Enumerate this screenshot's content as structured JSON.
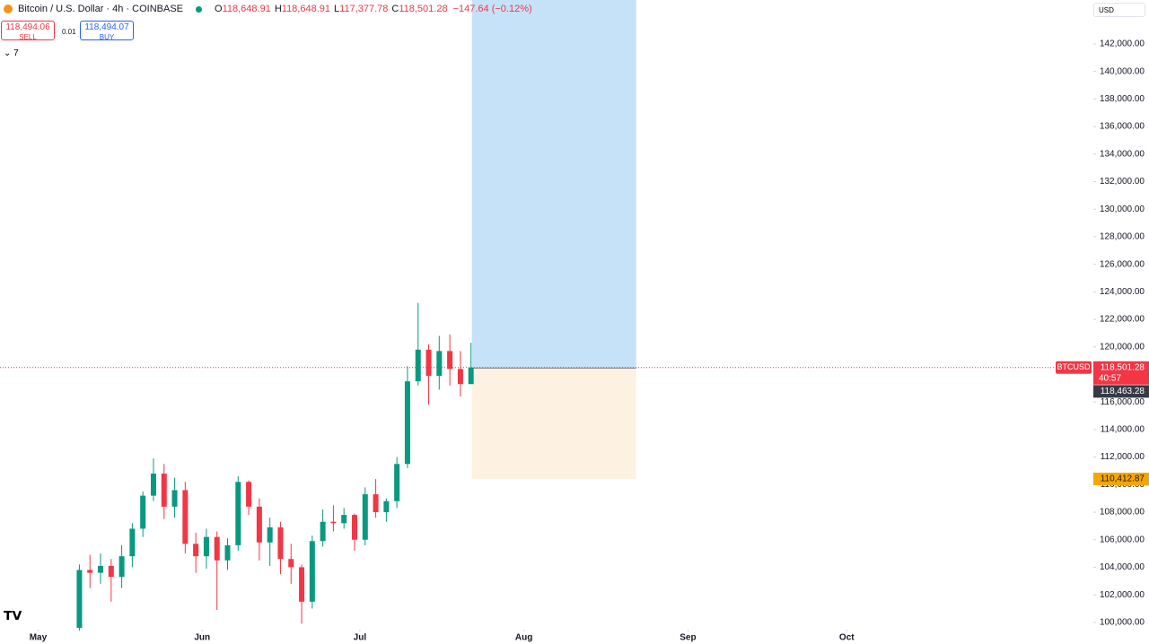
{
  "header": {
    "symbol": "Bitcoin / U.S. Dollar · 4h · COINBASE",
    "ohlc": [
      {
        "key": "O",
        "value": "118,648.91"
      },
      {
        "key": "H",
        "value": "118,648.91"
      },
      {
        "key": "L",
        "value": "117,377.78"
      },
      {
        "key": "C",
        "value": "118,501.28"
      }
    ],
    "change": "−147.64 (−0.12%)",
    "indicators": "7"
  },
  "trade": {
    "sell": "118,494.06",
    "sell_label": "SELL",
    "spread": "0.01",
    "buy": "118,494.07",
    "buy_label": "BUY"
  },
  "currency": "USD",
  "chart_data": {
    "type": "candlestick",
    "open": [
      99600,
      103800,
      103600,
      104100,
      103300,
      104800,
      106800,
      109200,
      110800,
      108400,
      109600,
      105700,
      104800,
      106200,
      104500,
      105600,
      110200,
      108400,
      105800,
      106900,
      104600,
      104000,
      101500,
      105900,
      107300,
      107200,
      107800,
      106000,
      109300,
      108000,
      108800,
      111500,
      117500,
      119800,
      117900,
      119700,
      118400,
      117300
    ],
    "high": [
      104200,
      104900,
      105000,
      104600,
      105600,
      107200,
      109500,
      111900,
      111500,
      110500,
      110200,
      106500,
      106800,
      106600,
      106100,
      110600,
      110300,
      109000,
      107600,
      107300,
      105700,
      104200,
      106300,
      108200,
      108500,
      108300,
      107900,
      109800,
      110400,
      109000,
      112000,
      118600,
      123200,
      120200,
      120800,
      120900,
      119700,
      120300
    ],
    "low": [
      99400,
      102500,
      102800,
      101500,
      102500,
      104000,
      106200,
      108800,
      107500,
      107600,
      105000,
      103600,
      103900,
      100900,
      103800,
      105200,
      107800,
      104500,
      104100,
      103500,
      102800,
      99900,
      101000,
      105500,
      106600,
      106800,
      105200,
      105600,
      107600,
      107300,
      108300,
      111200,
      117200,
      115800,
      116900,
      117200,
      116400,
      117300
    ],
    "close": [
      103800,
      103600,
      104100,
      103300,
      104800,
      106800,
      109200,
      110800,
      108400,
      109600,
      105700,
      104800,
      106200,
      104500,
      105600,
      110200,
      108400,
      105800,
      106900,
      104600,
      104000,
      101500,
      105900,
      107300,
      107200,
      107800,
      106000,
      109300,
      108000,
      108800,
      111500,
      117500,
      119800,
      117900,
      119700,
      118400,
      117300,
      118501.28
    ],
    "up_color": "#089981",
    "down_color": "#f23645",
    "xlim": [
      -7.5,
      95.8
    ],
    "xticks": [
      {
        "value": -3.9,
        "label": "May"
      },
      {
        "value": 11.6,
        "label": "Jun"
      },
      {
        "value": 26.5,
        "label": "Jul"
      },
      {
        "value": 42,
        "label": "Aug"
      },
      {
        "value": 57.5,
        "label": "Sep"
      },
      {
        "value": 72.5,
        "label": "Oct"
      }
    ],
    "ylim": [
      99600,
      145190
    ],
    "yticks": [
      {
        "value": 100000,
        "label": "100,000.00"
      },
      {
        "value": 102000,
        "label": "102,000.00"
      },
      {
        "value": 104000,
        "label": "104,000.00"
      },
      {
        "value": 106000,
        "label": "106,000.00"
      },
      {
        "value": 108000,
        "label": "108,000.00"
      },
      {
        "value": 110000,
        "label": "110,000.00"
      },
      {
        "value": 112000,
        "label": "112,000.00"
      },
      {
        "value": 114000,
        "label": "114,000.00"
      },
      {
        "value": 116000,
        "label": "116,000.00"
      },
      {
        "value": 118000,
        "label": "118,000.00"
      },
      {
        "value": 120000,
        "label": "120,000.00"
      },
      {
        "value": 122000,
        "label": "122,000.00"
      },
      {
        "value": 124000,
        "label": "124,000.00"
      },
      {
        "value": 126000,
        "label": "126,000.00"
      },
      {
        "value": 128000,
        "label": "128,000.00"
      },
      {
        "value": 130000,
        "label": "130,000.00"
      },
      {
        "value": 132000,
        "label": "132,000.00"
      },
      {
        "value": 134000,
        "label": "134,000.00"
      },
      {
        "value": 136000,
        "label": "136,000.00"
      },
      {
        "value": 138000,
        "label": "138,000.00"
      },
      {
        "value": 140000,
        "label": "140,000.00"
      },
      {
        "value": 142000,
        "label": "142,000.00"
      }
    ],
    "last_price": {
      "value": 118501.28,
      "label": "118,501.28",
      "ticker": "BTCUSD",
      "countdown": "40:57",
      "color": "#f23645"
    },
    "position": {
      "entry": {
        "value": 118463.28,
        "label": "118,463.28"
      },
      "stop": {
        "value": 110412.87,
        "label": "110,412.87"
      },
      "target_color": "#c6e2f9",
      "stop_color": "#fdf1e1"
    }
  }
}
